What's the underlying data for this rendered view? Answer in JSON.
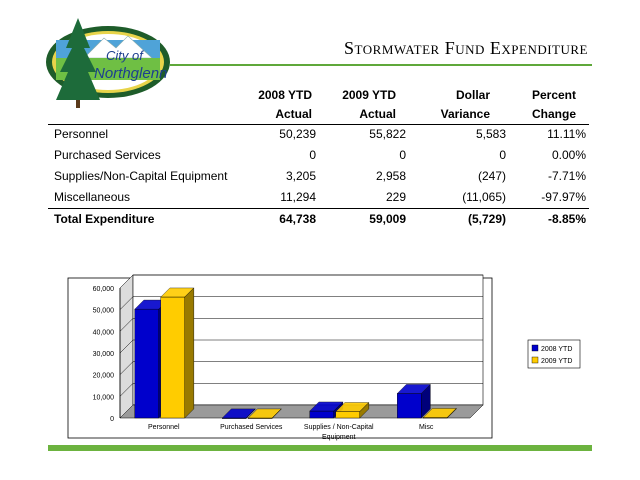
{
  "logo": {
    "text_line1": "City of",
    "text_line2": "Northglenn"
  },
  "title": "Stormwater Fund Expenditure",
  "table": {
    "headers": [
      {
        "line1": "2008 YTD",
        "line2": "Actual"
      },
      {
        "line1": "2009 YTD",
        "line2": "Actual"
      },
      {
        "line1": "Dollar",
        "line2": "Variance"
      },
      {
        "line1": "Percent",
        "line2": "Change"
      }
    ],
    "rows": [
      {
        "label": "Personnel",
        "y2008": "50,239",
        "y2009": "55,822",
        "variance": "5,583",
        "pct": "11.11%"
      },
      {
        "label": "Purchased Services",
        "y2008": "0",
        "y2009": "0",
        "variance": "0",
        "pct": "0.00%"
      },
      {
        "label": "Supplies/Non-Capital Equipment",
        "y2008": "3,205",
        "y2009": "2,958",
        "variance": "(247)",
        "pct": "-7.71%"
      },
      {
        "label": "Miscellaneous",
        "y2008": "11,294",
        "y2009": "229",
        "variance": "(11,065)",
        "pct": "-97.97%"
      }
    ],
    "total": {
      "label": "Total Expenditure",
      "y2008": "64,738",
      "y2009": "59,009",
      "variance": "(5,729)",
      "pct": "-8.85%"
    }
  },
  "chart_data": {
    "type": "bar",
    "categories": [
      "Personnel",
      "Purchased Services",
      "Supplies / Non-Capital Equipment",
      "Misc"
    ],
    "category_lines": [
      [
        "Personnel"
      ],
      [
        "Purchased Services"
      ],
      [
        "Supplies / Non-Capital",
        "Equipment"
      ],
      [
        "Misc"
      ]
    ],
    "series": [
      {
        "name": "2008 YTD",
        "values": [
          50239,
          0,
          3205,
          11294
        ],
        "color": "#0000cc"
      },
      {
        "name": "2009 YTD",
        "values": [
          55822,
          0,
          2958,
          229
        ],
        "color": "#ffcc00"
      }
    ],
    "yticks": [
      "0",
      "10,000",
      "20,000",
      "30,000",
      "40,000",
      "50,000",
      "60,000"
    ],
    "ylim": [
      0,
      60000
    ],
    "grid": true,
    "legend": "right",
    "style": "3d-bar"
  }
}
